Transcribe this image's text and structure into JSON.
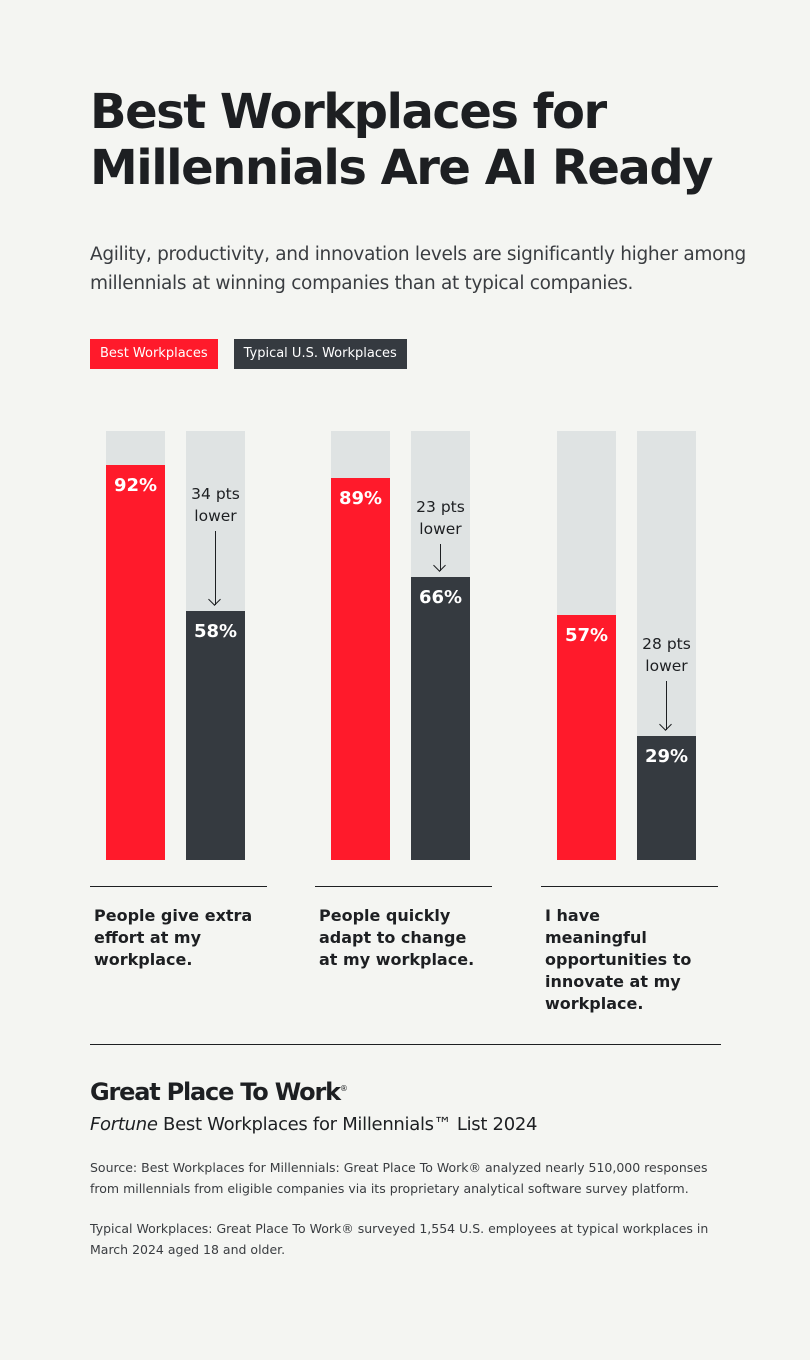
{
  "header": {
    "title_line1": "Best Workplaces for",
    "title_line2": "Millennials Are AI Ready",
    "subtitle": "Agility, productivity, and innovation levels are significantly higher among millennials at winning companies than at typical companies."
  },
  "colors": {
    "best": "#ff1a2b",
    "typical": "#353a40",
    "track": "#dfe3e3",
    "background": "#f4f5f2"
  },
  "chart_data": {
    "type": "bar",
    "ylim": [
      0,
      100
    ],
    "grid": false,
    "legend_placement": "top-left",
    "legend": [
      "Best Workplaces",
      "Typical U.S. Workplaces"
    ],
    "categories": [
      "People give extra effort at my workplace.",
      "People quickly adapt to change at my workplace.",
      "I have meaningful opportunities to innovate at my workplace."
    ],
    "series": [
      {
        "name": "Best Workplaces",
        "values": [
          92,
          89,
          57
        ],
        "labels": [
          "92%",
          "89%",
          "57%"
        ]
      },
      {
        "name": "Typical U.S. Workplaces",
        "values": [
          58,
          66,
          29
        ],
        "labels": [
          "58%",
          "66%",
          "29%"
        ]
      }
    ],
    "annotations": [
      [
        "34 pts",
        "lower"
      ],
      [
        "23 pts",
        "lower"
      ],
      [
        "28 pts",
        "lower"
      ]
    ]
  },
  "footer": {
    "logo": "Great Place To Work",
    "logo_mark": "®",
    "list_italic": "Fortune",
    "list_rest": " Best Workplaces for Millennials™ List 2024",
    "source": "Source: Best Workplaces for Millennials: Great Place To Work® analyzed nearly 510,000 responses from millennials from eligible companies via its proprietary analytical software survey platform.",
    "typical_note": "Typical Workplaces: Great Place To Work® surveyed 1,554 U.S. employees at typical workplaces in March 2024 aged 18 and older."
  }
}
